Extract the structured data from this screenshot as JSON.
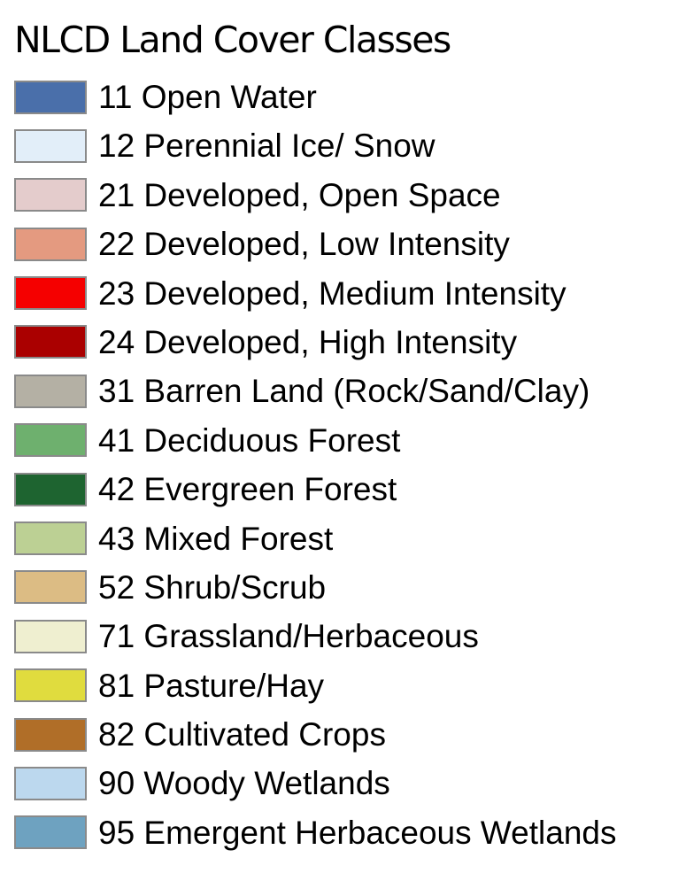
{
  "title": "NLCD Land Cover Classes",
  "legend": {
    "items": [
      {
        "code": "11",
        "label": "11 Open Water",
        "color": "#4a6faa"
      },
      {
        "code": "12",
        "label": "12 Perennial Ice/ Snow",
        "color": "#e2eef9"
      },
      {
        "code": "21",
        "label": "21 Developed, Open Space",
        "color": "#e4cccc"
      },
      {
        "code": "22",
        "label": "22 Developed, Low Intensity",
        "color": "#e49a80"
      },
      {
        "code": "23",
        "label": "23 Developed, Medium Intensity",
        "color": "#f50000"
      },
      {
        "code": "24",
        "label": "24 Developed, High Intensity",
        "color": "#aa0000"
      },
      {
        "code": "31",
        "label": "31 Barren Land (Rock/Sand/Clay)",
        "color": "#b4b0a4"
      },
      {
        "code": "41",
        "label": "41 Deciduous Forest",
        "color": "#6eb06e"
      },
      {
        "code": "42",
        "label": "42 Evergreen Forest",
        "color": "#1e6430"
      },
      {
        "code": "43",
        "label": "43 Mixed Forest",
        "color": "#bcd094"
      },
      {
        "code": "52",
        "label": "52 Shrub/Scrub",
        "color": "#dcbc84"
      },
      {
        "code": "71",
        "label": "71 Grassland/Herbaceous",
        "color": "#efefd0"
      },
      {
        "code": "81",
        "label": "81 Pasture/Hay",
        "color": "#e0dc3e"
      },
      {
        "code": "82",
        "label": "82 Cultivated Crops",
        "color": "#b06e28"
      },
      {
        "code": "90",
        "label": "90 Woody Wetlands",
        "color": "#bcd8ee"
      },
      {
        "code": "95",
        "label": "95 Emergent Herbaceous Wetlands",
        "color": "#6ea2c0"
      }
    ]
  }
}
